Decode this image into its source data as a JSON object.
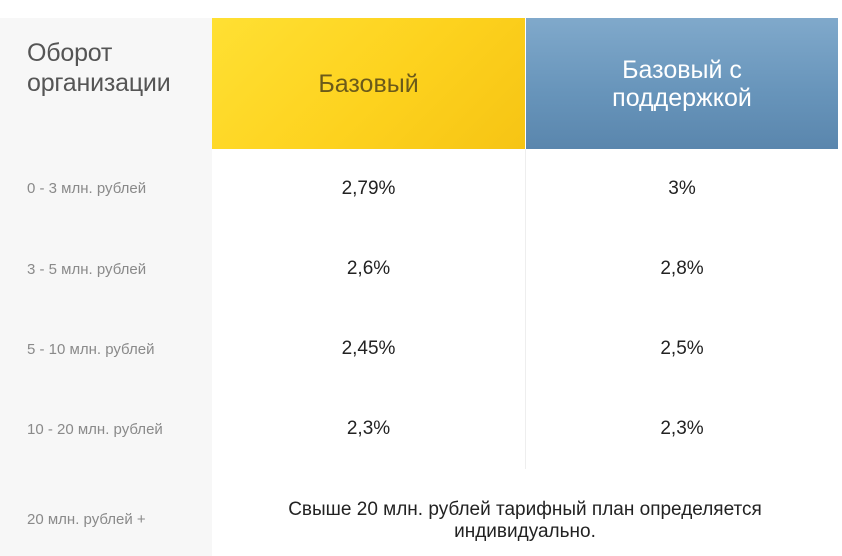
{
  "header": {
    "turnover_label_line1": "Оборот",
    "turnover_label_line2": "организации",
    "plans": [
      {
        "name": "Базовый"
      },
      {
        "name_line1": "Базовый с",
        "name_line2": "поддержкой"
      }
    ]
  },
  "rows": [
    {
      "range": "0 - 3 млн. рублей",
      "basic": "2,79%",
      "support": "3%"
    },
    {
      "range": "3 - 5 млн. рублей",
      "basic": "2,6%",
      "support": "2,8%"
    },
    {
      "range": "5 - 10 млн. рублей",
      "basic": "2,45%",
      "support": "2,5%"
    },
    {
      "range": "10 - 20 млн. рублей",
      "basic": "2,3%",
      "support": "2,3%"
    }
  ],
  "footer_row": {
    "range": "20 млн. рублей +",
    "note_line1": "Свыше 20 млн. рублей тарифный план определяется",
    "note_line2": "индивидуально."
  },
  "colors": {
    "basic_accent": "#fdd21e",
    "support_accent": "#6895bb",
    "label_column_bg": "#f7f7f7"
  }
}
